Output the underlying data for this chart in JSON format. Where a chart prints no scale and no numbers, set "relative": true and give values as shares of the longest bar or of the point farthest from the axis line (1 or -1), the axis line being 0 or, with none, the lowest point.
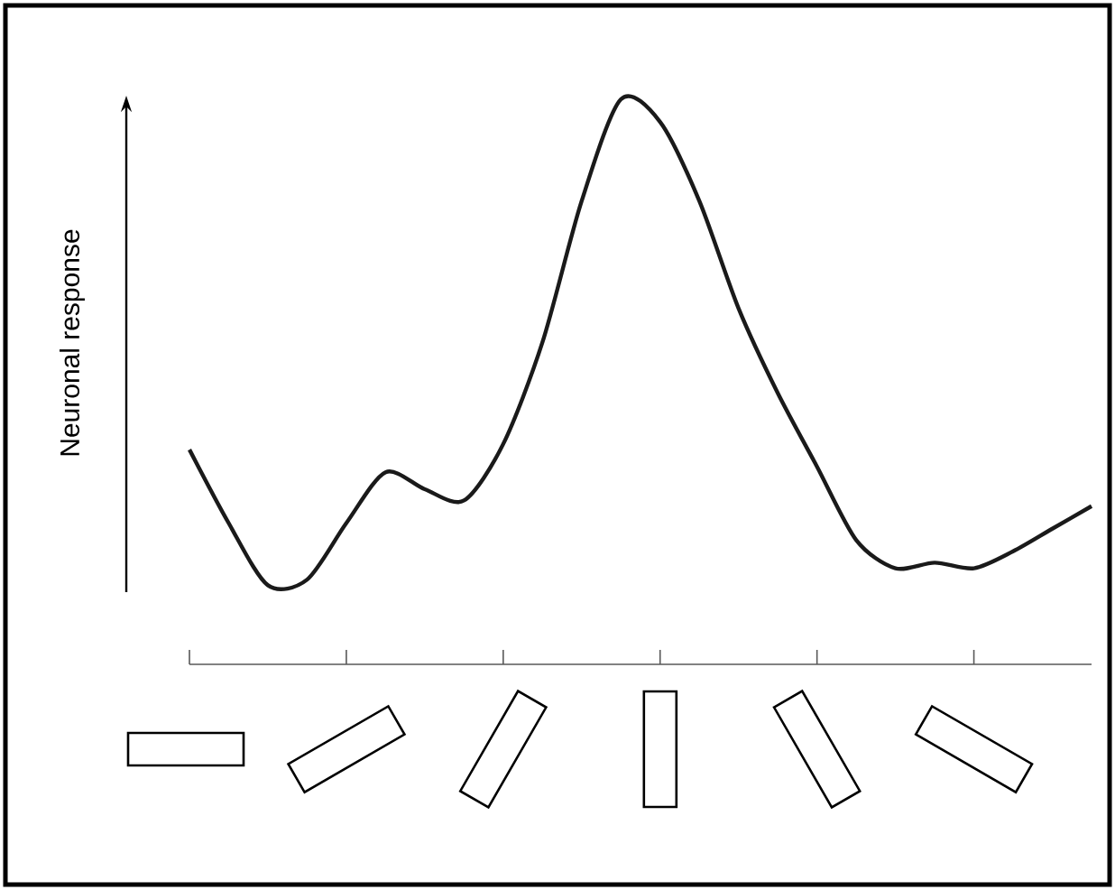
{
  "chart_data": {
    "type": "line",
    "relative": true,
    "ylabel": "Neuronal response",
    "color": "#1a1a1a",
    "categories": [
      null,
      null,
      null,
      null,
      null,
      null,
      null,
      null,
      null,
      null,
      null,
      null,
      null,
      null,
      null,
      null,
      null,
      null,
      null,
      null,
      null,
      null,
      null,
      null
    ],
    "values": [
      0.38,
      0.25,
      0.14,
      0.15,
      0.25,
      0.34,
      0.31,
      0.29,
      0.39,
      0.57,
      0.82,
      1.0,
      0.96,
      0.82,
      0.63,
      0.48,
      0.35,
      0.22,
      0.17,
      0.18,
      0.17,
      0.2,
      0.24,
      0.28
    ]
  }
}
